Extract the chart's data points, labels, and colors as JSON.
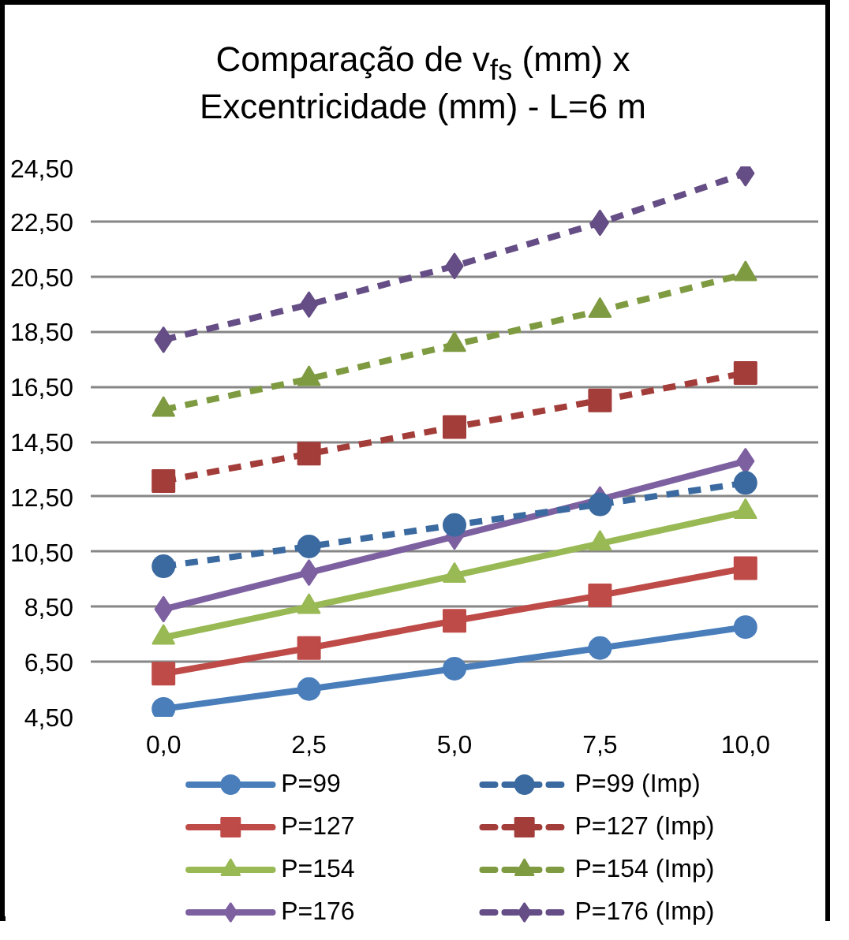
{
  "chart_data": {
    "type": "line",
    "title": "Comparação de v$_{fs}$ (mm) x\nExcentricidade (mm) - L=6 m",
    "categories": [
      "0,0",
      "2,5",
      "5,0",
      "7,5",
      "10,0"
    ],
    "ylim": [
      4.5,
      24.5
    ],
    "yticks": [
      {
        "value": 4.5,
        "label": "4,50"
      },
      {
        "value": 6.5,
        "label": "6,50"
      },
      {
        "value": 8.5,
        "label": "8,50"
      },
      {
        "value": 10.5,
        "label": "10,50"
      },
      {
        "value": 12.5,
        "label": "12,50"
      },
      {
        "value": 14.5,
        "label": "14,50"
      },
      {
        "value": 16.5,
        "label": "16,50"
      },
      {
        "value": 18.5,
        "label": "18,50"
      },
      {
        "value": 20.5,
        "label": "20,50"
      },
      {
        "value": 22.5,
        "label": "22,50"
      },
      {
        "value": 24.5,
        "label": "24,50"
      }
    ],
    "grid": "y",
    "legend": "bottom",
    "series": [
      {
        "name": "P=99",
        "color": "#4a7ebb",
        "marker": "circle",
        "line_style": "solid",
        "values": [
          4.79,
          5.51,
          6.25,
          7.0,
          7.76
        ]
      },
      {
        "name": "P=127",
        "color": "#be4b48",
        "marker": "square",
        "line_style": "solid",
        "values": [
          6.07,
          7.0,
          7.99,
          8.91,
          9.9
        ]
      },
      {
        "name": "P=154",
        "color": "#98b954",
        "marker": "triangle",
        "line_style": "solid",
        "values": [
          7.38,
          8.5,
          9.63,
          10.8,
          11.95
        ]
      },
      {
        "name": "P=176",
        "color": "#7d60a0",
        "marker": "diamond",
        "line_style": "solid",
        "values": [
          8.41,
          9.74,
          11.05,
          12.4,
          13.79
        ]
      },
      {
        "name": "P=99 (Imp)",
        "color": "#3b6aa0",
        "marker": "circle",
        "line_style": "dashed",
        "values": [
          9.97,
          10.69,
          11.47,
          12.22,
          13.0
        ]
      },
      {
        "name": "P=127 (Imp)",
        "color": "#a33d3a",
        "marker": "square",
        "line_style": "dashed",
        "values": [
          13.07,
          14.06,
          15.03,
          16.0,
          16.99
        ]
      },
      {
        "name": "P=154 (Imp)",
        "color": "#7f9b42",
        "marker": "triangle",
        "line_style": "dashed",
        "values": [
          15.66,
          16.78,
          18.02,
          19.26,
          20.59
        ]
      },
      {
        "name": "P=176 (Imp)",
        "color": "#654d85",
        "marker": "diamond",
        "line_style": "dashed",
        "values": [
          18.2,
          19.48,
          20.88,
          22.45,
          24.25
        ]
      }
    ]
  }
}
